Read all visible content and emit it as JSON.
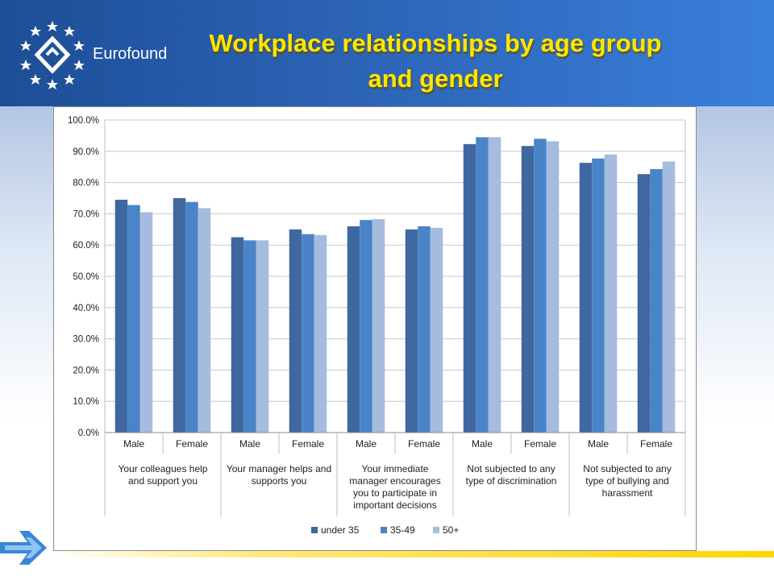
{
  "header": {
    "logo_text": "Eurofound",
    "title_line1": "Workplace relationships by age group",
    "title_line2": "and gender"
  },
  "colors": {
    "series": [
      "#3f67a0",
      "#4a84c8",
      "#a5bcdf"
    ],
    "title": "#ffe600"
  },
  "chart_data": {
    "type": "bar",
    "title": "Workplace relationships by age group and gender",
    "ylim": [
      0,
      100
    ],
    "yticks": [
      0,
      10,
      20,
      30,
      40,
      50,
      60,
      70,
      80,
      90,
      100
    ],
    "ytick_labels": [
      "0.0%",
      "10.0%",
      "20.0%",
      "30.0%",
      "40.0%",
      "50.0%",
      "60.0%",
      "70.0%",
      "80.0%",
      "90.0%",
      "100.0%"
    ],
    "grid": true,
    "legend_position": "bottom",
    "categories": [
      "Male",
      "Female",
      "Male",
      "Female",
      "Male",
      "Female",
      "Male",
      "Female",
      "Male",
      "Female"
    ],
    "groups": [
      {
        "lines": [
          "Your colleagues help",
          "and support you"
        ]
      },
      {
        "lines": [
          "Your manager helps and",
          "supports you"
        ]
      },
      {
        "lines": [
          "Your immediate",
          "manager encourages",
          "you to participate in",
          "important decisions"
        ]
      },
      {
        "lines": [
          "Not subjected to any",
          "type of discrimination"
        ]
      },
      {
        "lines": [
          "Not subjected to any",
          "type of bullying and",
          "harassment"
        ]
      }
    ],
    "series": [
      {
        "name": "under 35",
        "values": [
          74.5,
          75.0,
          62.5,
          65.0,
          66.0,
          65.0,
          92.3,
          91.7,
          86.3,
          82.7
        ]
      },
      {
        "name": "35-49",
        "values": [
          72.8,
          73.8,
          61.5,
          63.5,
          68.0,
          66.0,
          94.5,
          94.0,
          87.7,
          84.3
        ]
      },
      {
        "name": "50+",
        "values": [
          70.5,
          71.8,
          61.5,
          63.2,
          68.3,
          65.5,
          94.5,
          93.2,
          89.0,
          86.7
        ]
      }
    ]
  }
}
